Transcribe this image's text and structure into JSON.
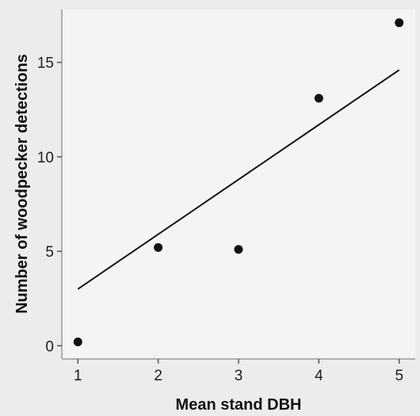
{
  "chart_data": {
    "type": "scatter",
    "xlabel": "Mean stand DBH",
    "ylabel": "Number of woodpecker detections",
    "xlim": [
      0.8,
      5.2
    ],
    "ylim": [
      -0.7,
      17.8
    ],
    "xticks": [
      1,
      2,
      3,
      4,
      5
    ],
    "yticks": [
      0,
      5,
      10,
      15
    ],
    "grid": false,
    "points": [
      {
        "x": 1,
        "y": 0.2
      },
      {
        "x": 2,
        "y": 5.2
      },
      {
        "x": 3,
        "y": 5.1
      },
      {
        "x": 4,
        "y": 13.1
      },
      {
        "x": 5,
        "y": 17.1
      }
    ],
    "fit_line": {
      "x": [
        1,
        5
      ],
      "y": [
        3.0,
        14.6
      ]
    }
  },
  "colors": {
    "plot_background": "#f4f4f4",
    "page_background": "#ececec",
    "ink": "#111111"
  }
}
